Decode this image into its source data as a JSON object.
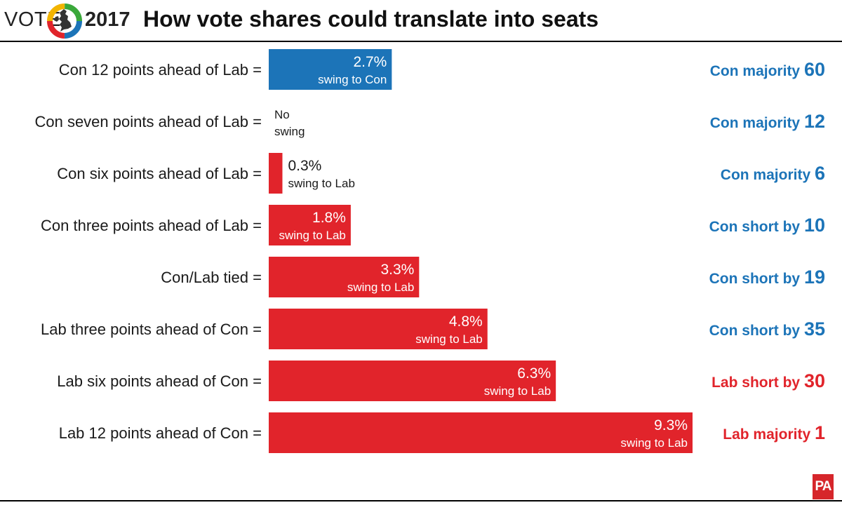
{
  "header": {
    "vote_word": "VOTE",
    "year": "2017",
    "title": "How vote shares could translate into seats",
    "logo_icon": "uk-map-ring-logo-icon"
  },
  "footer": {
    "agency_logo_text": "PA"
  },
  "colors": {
    "con": "#1c74b8",
    "lab": "#e1242b",
    "label": "#1a1a1a"
  },
  "chart_data": {
    "type": "bar",
    "orientation": "horizontal",
    "title": "How vote shares could translate into seats",
    "xlabel": "",
    "ylabel": "",
    "xlim": [
      0,
      9.3
    ],
    "grid": false,
    "categories": [
      "Con 12 points ahead of Lab =",
      "Con seven points ahead of Lab =",
      "Con six points ahead of Lab =",
      "Con three points ahead of Lab =",
      "Con/Lab tied =",
      "Lab three points ahead of Con =",
      "Lab six points ahead of Con =",
      "Lab 12 points ahead of Con ="
    ],
    "values": [
      2.7,
      0,
      0.3,
      1.8,
      3.3,
      4.8,
      6.3,
      9.3
    ],
    "swing_to": [
      "Con",
      null,
      "Lab",
      "Lab",
      "Lab",
      "Lab",
      "Lab",
      "Lab"
    ],
    "value_labels": [
      "2.7%",
      "No",
      "0.3%",
      "1.8%",
      "3.3%",
      "4.8%",
      "6.3%",
      "9.3%"
    ],
    "sub_labels": [
      "swing to Con",
      "swing",
      "swing to Lab",
      "swing to Lab",
      "swing to Lab",
      "swing to Lab",
      "swing to Lab",
      "swing to Lab"
    ],
    "outcomes": [
      {
        "text": "Con majority",
        "number": "60",
        "party": "con"
      },
      {
        "text": "Con majority",
        "number": "12",
        "party": "con"
      },
      {
        "text": "Con majority",
        "number": "6",
        "party": "con"
      },
      {
        "text": "Con short by",
        "number": "10",
        "party": "con"
      },
      {
        "text": "Con short by",
        "number": "19",
        "party": "con"
      },
      {
        "text": "Con short by",
        "number": "35",
        "party": "con"
      },
      {
        "text": "Lab short by",
        "number": "30",
        "party": "lab"
      },
      {
        "text": "Lab majority",
        "number": "1",
        "party": "lab"
      }
    ]
  }
}
